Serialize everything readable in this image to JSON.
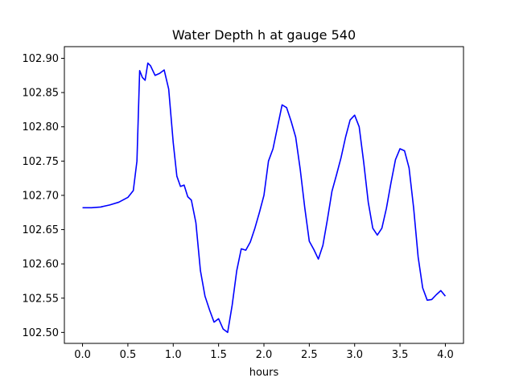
{
  "chart_data": {
    "type": "line",
    "title": "Water Depth h at gauge 540",
    "xlabel": "hours",
    "ylabel": "",
    "xlim": [
      -0.2,
      4.2
    ],
    "ylim": [
      102.484,
      102.917
    ],
    "xticks": [
      0.0,
      0.5,
      1.0,
      1.5,
      2.0,
      2.5,
      3.0,
      3.5,
      4.0
    ],
    "xtick_labels": [
      "0.0",
      "0.5",
      "1.0",
      "1.5",
      "2.0",
      "2.5",
      "3.0",
      "3.5",
      "4.0"
    ],
    "yticks": [
      102.5,
      102.55,
      102.6,
      102.65,
      102.7,
      102.75,
      102.8,
      102.85,
      102.9
    ],
    "ytick_labels": [
      "102.50",
      "102.55",
      "102.60",
      "102.65",
      "102.70",
      "102.75",
      "102.80",
      "102.85",
      "102.90"
    ],
    "grid": false,
    "line_color": "#0000ff",
    "series": [
      {
        "x": [
          0.0,
          0.1,
          0.2,
          0.3,
          0.4,
          0.5,
          0.56,
          0.6,
          0.63,
          0.66,
          0.69,
          0.72,
          0.75,
          0.8,
          0.85,
          0.9,
          0.95,
          1.0,
          1.04,
          1.08,
          1.12,
          1.16,
          1.2,
          1.25,
          1.3,
          1.35,
          1.4,
          1.45,
          1.5,
          1.55,
          1.6,
          1.65,
          1.7,
          1.75,
          1.8,
          1.85,
          1.9,
          1.95,
          2.0,
          2.05,
          2.1,
          2.15,
          2.2,
          2.25,
          2.3,
          2.35,
          2.4,
          2.45,
          2.5,
          2.55,
          2.6,
          2.65,
          2.7,
          2.75,
          2.8,
          2.85,
          2.9,
          2.95,
          3.0,
          3.05,
          3.1,
          3.15,
          3.2,
          3.25,
          3.3,
          3.35,
          3.4,
          3.45,
          3.5,
          3.55,
          3.6,
          3.65,
          3.7,
          3.75,
          3.8,
          3.85,
          3.9,
          3.95,
          4.0
        ],
        "y": [
          102.682,
          102.682,
          102.683,
          102.686,
          102.69,
          102.697,
          102.707,
          102.75,
          102.882,
          102.872,
          102.868,
          102.893,
          102.889,
          102.875,
          102.878,
          102.883,
          102.855,
          102.777,
          102.728,
          102.713,
          102.715,
          102.698,
          102.693,
          102.66,
          102.59,
          102.553,
          102.533,
          102.515,
          102.52,
          102.505,
          102.5,
          102.54,
          102.59,
          102.622,
          102.62,
          102.632,
          102.652,
          102.675,
          102.7,
          102.75,
          102.768,
          102.8,
          102.832,
          102.828,
          102.808,
          102.785,
          102.738,
          102.682,
          102.633,
          102.621,
          102.607,
          102.627,
          102.665,
          102.706,
          102.73,
          102.755,
          102.785,
          102.81,
          102.817,
          102.8,
          102.748,
          102.69,
          102.652,
          102.642,
          102.652,
          102.681,
          102.718,
          102.752,
          102.768,
          102.765,
          102.74,
          102.682,
          102.61,
          102.565,
          102.547,
          102.548,
          102.555,
          102.561,
          102.553
        ]
      }
    ]
  }
}
